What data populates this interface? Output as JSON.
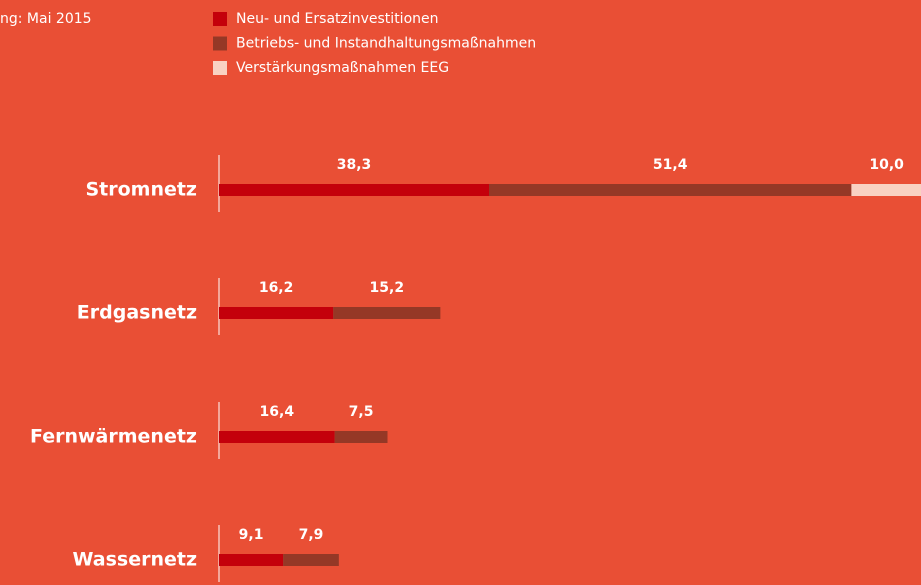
{
  "chart_data": {
    "type": "stacked-bar-horizontal",
    "subtitle": "ng: Mai 2015",
    "categories": [
      "Stromnetz",
      "Erdgasnetz",
      "Fernwärmenetz",
      "Wassernetz"
    ],
    "series": [
      {
        "name": "Neu- und Ersatzinvestitionen",
        "color": "#c4000b",
        "values": [
          38.3,
          16.2,
          16.4,
          9.1
        ],
        "value_labels": [
          "38,3",
          "16,2",
          "16,4",
          "9,1"
        ]
      },
      {
        "name": "Betriebs- und Instandhaltungsmaßnahmen",
        "color": "#953826",
        "values": [
          51.4,
          15.2,
          7.5,
          7.9
        ],
        "value_labels": [
          "51,4",
          "15,2",
          "7,5",
          "7,9"
        ]
      },
      {
        "name": "Verstärkungsmaßnahmen EEG",
        "color": "#f9d2c2",
        "values": [
          10.0,
          null,
          null,
          null
        ],
        "value_labels": [
          "10,0",
          null,
          null,
          null
        ]
      }
    ]
  }
}
